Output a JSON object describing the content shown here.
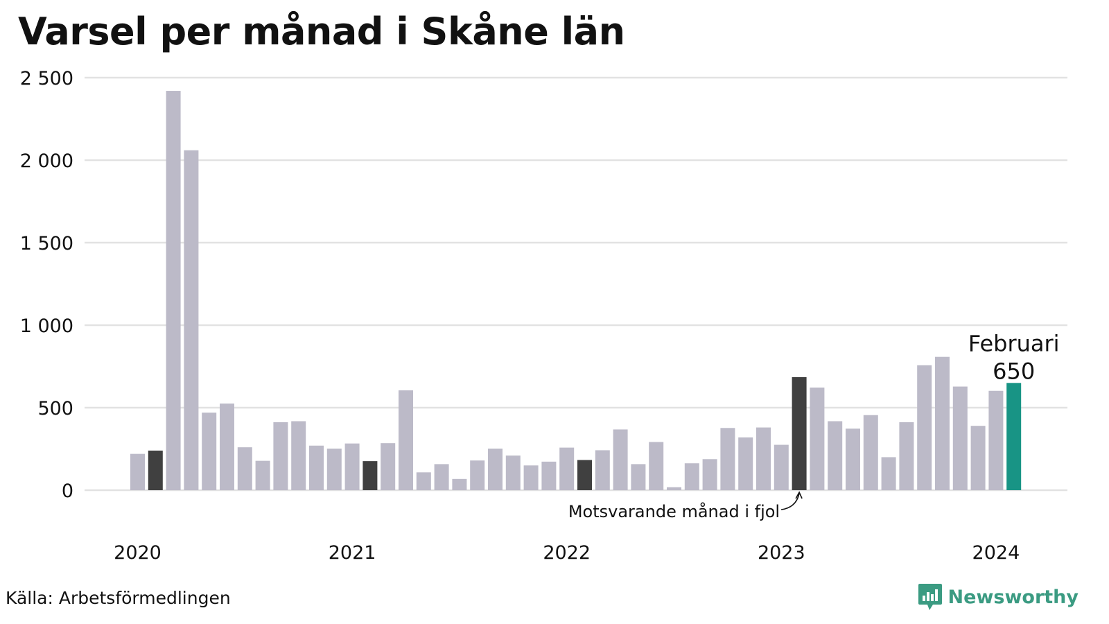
{
  "title": "Varsel per månad i Skåne län",
  "source": "Källa: Arbetsförmedlingen",
  "brand": {
    "name": "Newsworthy",
    "icon": "newsworthy-logo-icon",
    "color": "#3b9b82"
  },
  "colors": {
    "bar": "#bcbac8",
    "highlight": "#404040",
    "current": "#189485",
    "grid": "#e2e2e2",
    "text": "#111111"
  },
  "chart_data": {
    "type": "bar",
    "title": "Varsel per månad i Skåne län",
    "xlabel": "",
    "ylabel": "",
    "ylim": [
      0,
      2500
    ],
    "yticks": [
      0,
      500,
      1000,
      1500,
      2000,
      2500
    ],
    "ytick_labels": [
      "0",
      "500",
      "1 000",
      "1 500",
      "2 000",
      "2 500"
    ],
    "grid": true,
    "x_axis_labels": [
      {
        "label": "2020",
        "index": 0
      },
      {
        "label": "2021",
        "index": 12
      },
      {
        "label": "2022",
        "index": 24
      },
      {
        "label": "2023",
        "index": 36
      },
      {
        "label": "2024",
        "index": 48
      }
    ],
    "categories": [
      "2020-01",
      "2020-02",
      "2020-03",
      "2020-04",
      "2020-05",
      "2020-06",
      "2020-07",
      "2020-08",
      "2020-09",
      "2020-10",
      "2020-11",
      "2020-12",
      "2021-01",
      "2021-02",
      "2021-03",
      "2021-04",
      "2021-05",
      "2021-06",
      "2021-07",
      "2021-08",
      "2021-09",
      "2021-10",
      "2021-11",
      "2021-12",
      "2022-01",
      "2022-02",
      "2022-03",
      "2022-04",
      "2022-05",
      "2022-06",
      "2022-07",
      "2022-08",
      "2022-09",
      "2022-10",
      "2022-11",
      "2022-12",
      "2023-01",
      "2023-02",
      "2023-03",
      "2023-04",
      "2023-05",
      "2023-06",
      "2023-07",
      "2023-08",
      "2023-09",
      "2023-10",
      "2023-11",
      "2023-12",
      "2024-01",
      "2024-02"
    ],
    "values": [
      220,
      240,
      2420,
      2060,
      470,
      525,
      260,
      178,
      412,
      418,
      270,
      252,
      283,
      176,
      285,
      605,
      108,
      158,
      68,
      180,
      252,
      210,
      150,
      173,
      258,
      183,
      242,
      368,
      158,
      292,
      18,
      163,
      188,
      377,
      320,
      380,
      275,
      685,
      622,
      418,
      373,
      455,
      200,
      412,
      757,
      808,
      628,
      390,
      602,
      650
    ],
    "highlighted_indices": [
      1,
      13,
      25,
      37
    ],
    "current_index": 49,
    "annotations": [
      {
        "text": "Februari",
        "index": 49
      },
      {
        "text": "650",
        "index": 49
      },
      {
        "text": "Motsvarande månad i fjol",
        "index": 37
      }
    ]
  }
}
